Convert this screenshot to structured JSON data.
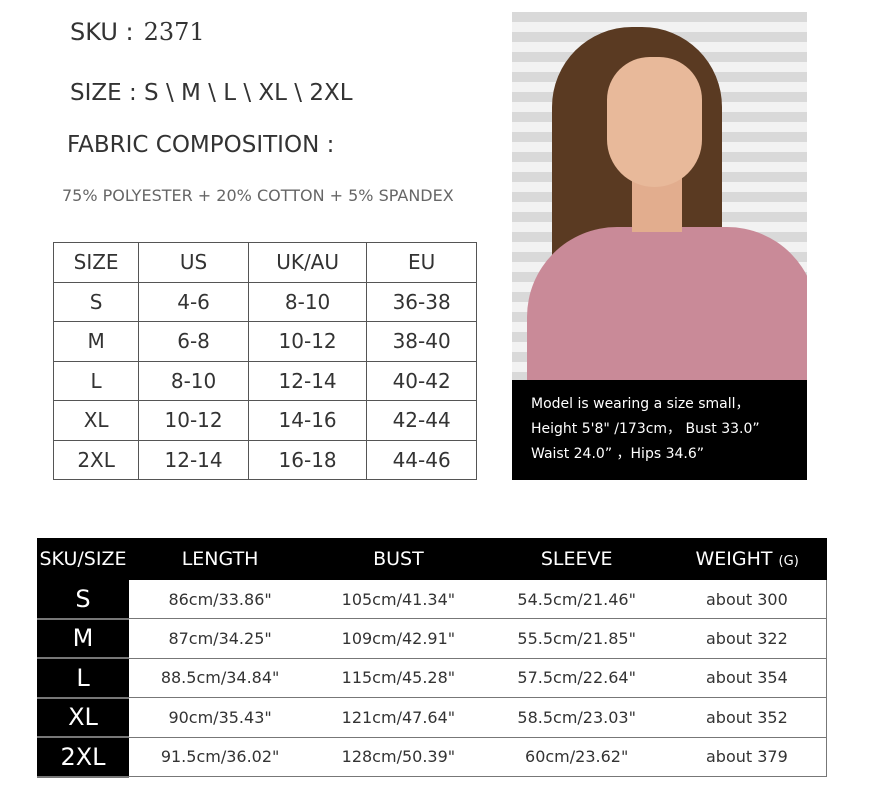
{
  "sku": {
    "label": "SKU :",
    "value": "2371"
  },
  "size": {
    "label": "SIZE :",
    "value": "S \\ M \\ L \\ XL \\ 2XL"
  },
  "fabric": {
    "label": "FABRIC COMPOSITION :",
    "value": "75% POLYESTER + 20% COTTON + 5% SPANDEX"
  },
  "size_table": {
    "headers": [
      "SIZE",
      "US",
      "UK/AU",
      "EU"
    ],
    "rows": [
      [
        "S",
        "4-6",
        "8-10",
        "36-38"
      ],
      [
        "M",
        "6-8",
        "10-12",
        "38-40"
      ],
      [
        "L",
        "8-10",
        "12-14",
        "40-42"
      ],
      [
        "XL",
        "10-12",
        "14-16",
        "42-44"
      ],
      [
        "2XL",
        "12-14",
        "16-18",
        "44-46"
      ]
    ]
  },
  "model_caption": [
    "Model is wearing a size small，",
    "Height  5'8\" /173cm， Bust 33.0”",
    "Waist 24.0”  ，Hips 34.6”"
  ],
  "measure_table": {
    "headers": [
      "SKU/SIZE",
      "LENGTH",
      "BUST",
      "SLEEVE",
      "WEIGHT"
    ],
    "weight_unit": "(G)",
    "rows": [
      [
        "S",
        "86cm/33.86\"",
        "105cm/41.34\"",
        "54.5cm/21.46\"",
        "about 300"
      ],
      [
        "M",
        "87cm/34.25\"",
        "109cm/42.91\"",
        "55.5cm/21.85\"",
        "about 322"
      ],
      [
        "L",
        "88.5cm/34.84\"",
        "115cm/45.28\"",
        "57.5cm/22.64\"",
        "about 354"
      ],
      [
        "XL",
        "90cm/35.43\"",
        "121cm/47.64\"",
        "58.5cm/23.03\"",
        "about 352"
      ],
      [
        "2XL",
        "91.5cm/36.02\"",
        "128cm/50.39\"",
        "60cm/23.62\"",
        "about 379"
      ]
    ]
  }
}
